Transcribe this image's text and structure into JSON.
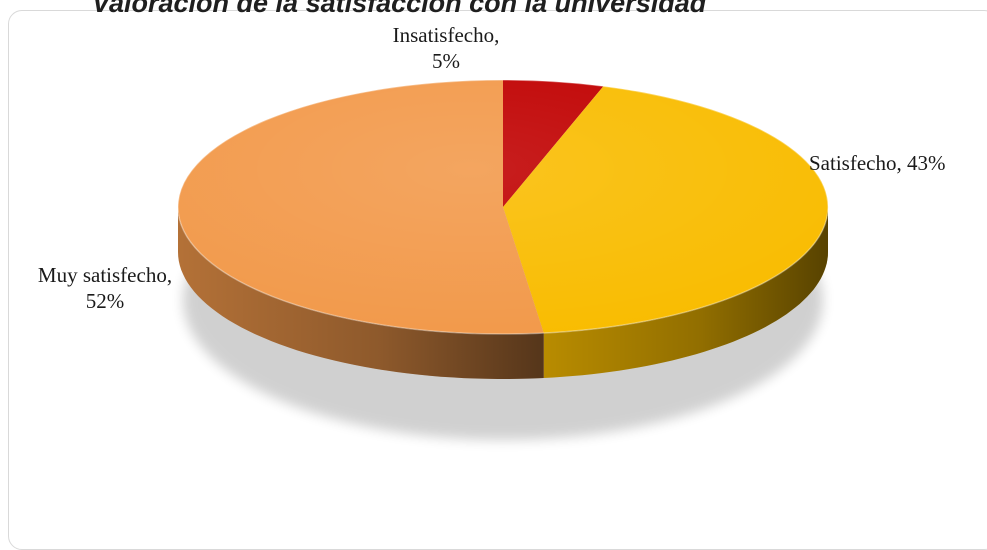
{
  "chart_data": {
    "type": "pie",
    "title": "Valoración de la satisfacción con la universidad",
    "slices": [
      {
        "label": "Insatisfecho",
        "value": 5,
        "display": [
          "Insatisfecho,",
          "5%"
        ],
        "color": "#c00000"
      },
      {
        "label": "Satisfecho",
        "value": 43,
        "display": [
          "Satisfecho, 43%"
        ],
        "color": "#f9bc00"
      },
      {
        "label": "Muy satisfecho",
        "value": 52,
        "display": [
          "Muy satisfecho,",
          "52%"
        ],
        "color": "#f2994a"
      }
    ]
  }
}
